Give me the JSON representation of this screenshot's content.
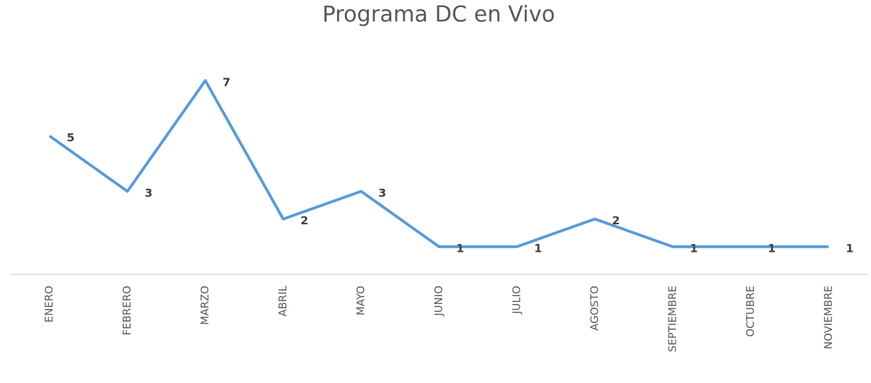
{
  "chart_data": {
    "type": "line",
    "title": "Programa DC en Vivo",
    "categories": [
      "ENERO",
      "FEBRERO",
      "MARZO",
      "ABRIL",
      "MAYO",
      "JUNIO",
      "JULIO",
      "AGOSTO",
      "SEPTIEMBRE",
      "OCTUBRE",
      "NOVIEMBRE"
    ],
    "values": [
      5,
      3,
      7,
      2,
      3,
      1,
      1,
      2,
      1,
      1,
      1
    ],
    "color": "#5b9bd5",
    "ylim": [
      0,
      8
    ],
    "grid": false
  }
}
